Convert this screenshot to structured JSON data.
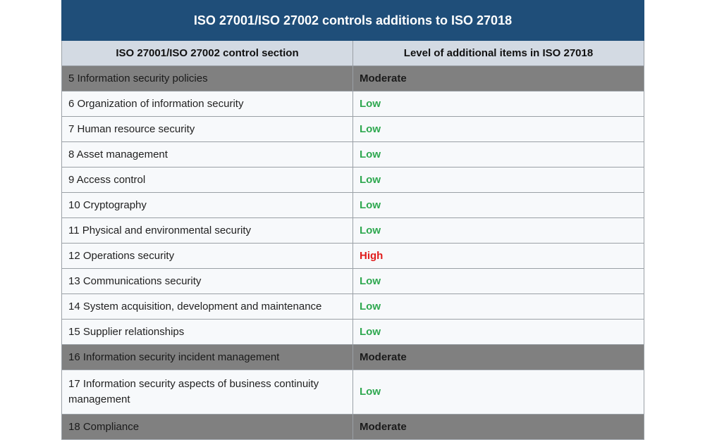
{
  "table": {
    "title": "ISO 27001/ISO 27002 controls additions to ISO 27018",
    "headers": {
      "section": "ISO 27001/ISO 27002 control section",
      "level": "Level of additional items in ISO 27018"
    },
    "rows": [
      {
        "section": "5 Information security policies",
        "level": "Moderate"
      },
      {
        "section": "6 Organization of information security",
        "level": "Low"
      },
      {
        "section": "7 Human resource security",
        "level": "Low"
      },
      {
        "section": "8 Asset management",
        "level": "Low"
      },
      {
        "section": "9 Access control",
        "level": "Low"
      },
      {
        "section": "10 Cryptography",
        "level": "Low"
      },
      {
        "section": "11 Physical and environmental security",
        "level": "Low"
      },
      {
        "section": "12 Operations security",
        "level": "High"
      },
      {
        "section": "13 Communications security",
        "level": "Low"
      },
      {
        "section": "14 System acquisition, development and maintenance",
        "level": "Low"
      },
      {
        "section": "15 Supplier relationships",
        "level": "Low"
      },
      {
        "section": "16 Information security incident management",
        "level": "Moderate"
      },
      {
        "section": "17 Information security aspects of business continuity management",
        "level": "Low"
      },
      {
        "section": "18 Compliance",
        "level": "Moderate"
      }
    ],
    "colors": {
      "title_bg": "#1f4e79",
      "header_bg": "#d3dae3",
      "moderate_row_bg": "#808080",
      "low": "#2ea84f",
      "moderate": "#f5f500",
      "high": "#e01b1b"
    }
  }
}
